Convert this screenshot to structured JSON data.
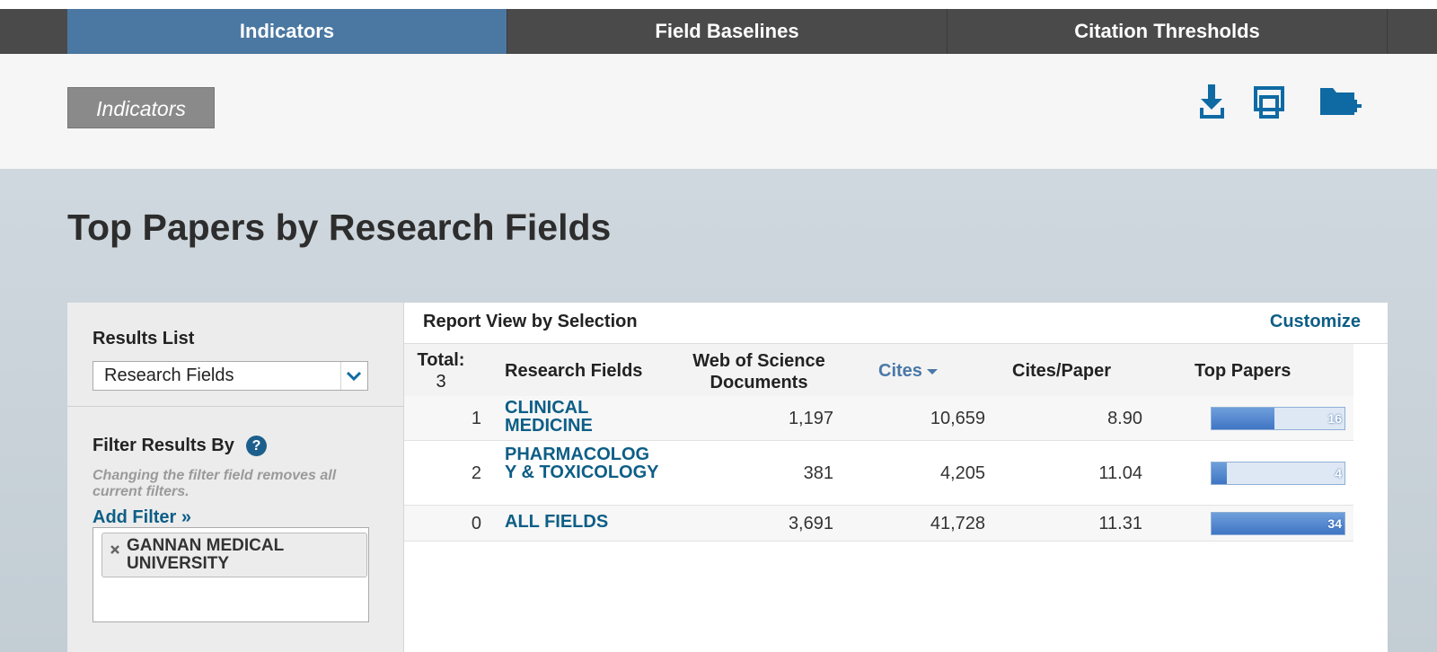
{
  "tabs": [
    "Indicators",
    "Field Baselines",
    "Citation Thresholds"
  ],
  "breadcrumb": "Indicators",
  "title": "Top Papers by Research Fields",
  "sidebar": {
    "results_list_label": "Results List",
    "results_list_value": "Research Fields",
    "filter_label": "Filter Results By",
    "filter_help": "?",
    "filter_note": "Changing the filter field removes all current filters.",
    "add_filter": "Add Filter »",
    "filters": [
      "GANNAN MEDICAL UNIVERSITY"
    ]
  },
  "report": {
    "heading": "Report View by Selection",
    "customize": "Customize",
    "total_label": "Total:",
    "total": 3,
    "columns": [
      "Research Fields",
      "Web of Science Documents",
      "Cites",
      "Cites/Paper",
      "Top Papers"
    ],
    "rows": [
      {
        "rank": 1,
        "field": "CLINICAL MEDICINE",
        "documents": "1,197",
        "cites": "10,659",
        "cites_per_paper": "8.90",
        "top_papers": 16
      },
      {
        "rank": 2,
        "field": "PHARMACOLOGY & TOXICOLOGY",
        "documents": "381",
        "cites": "4,205",
        "cites_per_paper": "11.04",
        "top_papers": 4
      },
      {
        "rank": 0,
        "field": "ALL FIELDS",
        "documents": "3,691",
        "cites": "41,728",
        "cites_per_paper": "11.31",
        "top_papers": 34
      }
    ]
  }
}
